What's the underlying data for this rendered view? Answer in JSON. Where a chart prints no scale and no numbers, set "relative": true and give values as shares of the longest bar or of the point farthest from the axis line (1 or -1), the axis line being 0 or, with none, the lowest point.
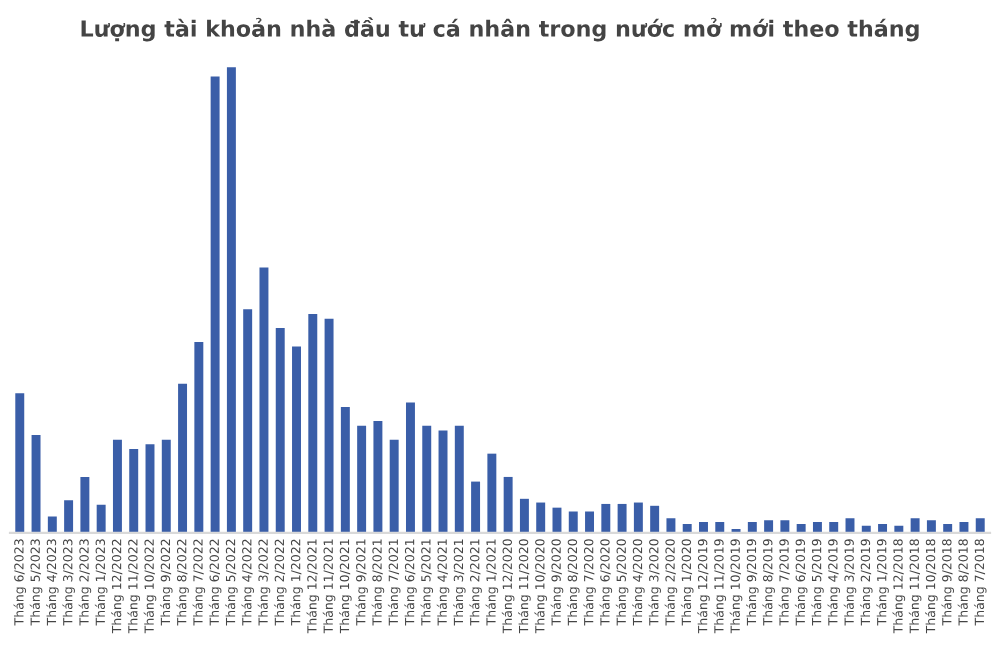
{
  "chart_data": {
    "type": "bar",
    "title": "Lượng tài khoản nhà đầu tư cá nhân trong nước mở mới theo tháng",
    "relative": true,
    "color": "#3a5ea8",
    "categories": [
      "Tháng 6/2023",
      "Tháng 5/2023",
      "Tháng 4/2023",
      "Tháng 3/2023",
      "Tháng 2/2023",
      "Tháng 1/2023",
      "Tháng 12/2022",
      "Tháng 11/2022",
      "Tháng 10/2022",
      "Tháng 9/2022",
      "Tháng 8/2022",
      "Tháng 7/2022",
      "Tháng 6/2022",
      "Tháng 5/2022",
      "Tháng 4/2022",
      "Tháng 3/2022",
      "Tháng 2/2022",
      "Tháng 1/2022",
      "Tháng 12/2021",
      "Tháng 11/2021",
      "Tháng 10/2021",
      "Tháng 9/2021",
      "Tháng 8/2021",
      "Tháng 7/2021",
      "Tháng 6/2021",
      "Tháng 5/2021",
      "Tháng 4/2021",
      "Tháng 3/2021",
      "Tháng 2/2021",
      "Tháng 1/2021",
      "Tháng 12/2020",
      "Tháng 11/2020",
      "Tháng 10/2020",
      "Tháng 9/2020",
      "Tháng 8/2020",
      "Tháng 7/2020",
      "Tháng 6/2020",
      "Tháng 5/2020",
      "Tháng 4/2020",
      "Tháng 3/2020",
      "Tháng 2/2020",
      "Tháng 1/2020",
      "Tháng 12/2019",
      "Tháng 11/2019",
      "Tháng 10/2019",
      "Tháng 9/2019",
      "Tháng 8/2019",
      "Tháng 7/2019",
      "Tháng 6/2019",
      "Tháng 5/2019",
      "Tháng 4/2019",
      "Tháng 3/2019",
      "Tháng 2/2019",
      "Tháng 1/2019",
      "Tháng 12/2018",
      "Tháng 11/2018",
      "Tháng 10/2018",
      "Tháng 9/2018",
      "Tháng 8/2018",
      "Tháng 7/2018"
    ],
    "values": [
      0.3,
      0.21,
      0.035,
      0.07,
      0.12,
      0.06,
      0.2,
      0.18,
      0.19,
      0.2,
      0.32,
      0.41,
      0.98,
      1,
      0.48,
      0.57,
      0.44,
      0.4,
      0.47,
      0.46,
      0.27,
      0.23,
      0.24,
      0.2,
      0.28,
      0.23,
      0.22,
      0.23,
      0.11,
      0.17,
      0.12,
      0.073,
      0.065,
      0.054,
      0.046,
      0.046,
      0.062,
      0.062,
      0.065,
      0.058,
      0.031,
      0.019,
      0.023,
      0.023,
      0.008,
      0.023,
      0.027,
      0.027,
      0.019,
      0.023,
      0.023,
      0.031,
      0.015,
      0.019,
      0.015,
      0.031,
      0.027,
      0.019,
      0.023,
      0.031
    ]
  }
}
